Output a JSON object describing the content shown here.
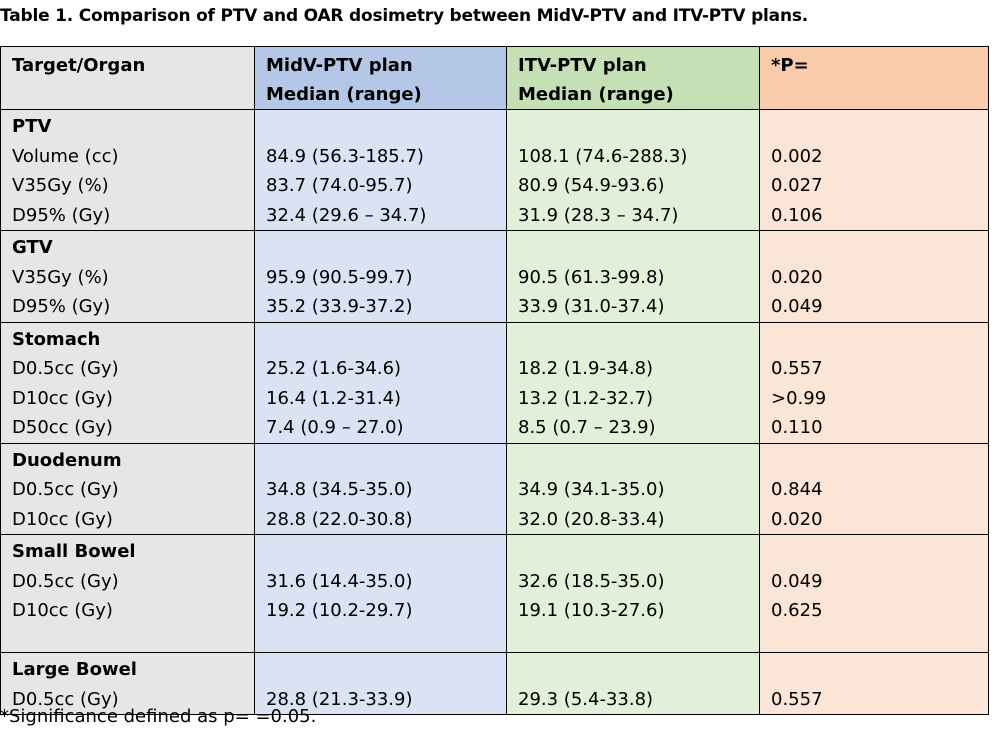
{
  "caption": "Table 1.  Comparison of PTV and OAR dosimetry between MidV-PTV and ITV-PTV plans.",
  "headers": {
    "target": "Target/Organ",
    "midv_1": "MidV-PTV plan",
    "midv_2": "Median (range)",
    "itv_1": "ITV-PTV plan",
    "itv_2": "Median (range)",
    "p": "*P="
  },
  "groups": [
    {
      "name": "PTV",
      "rows": [
        {
          "label": "Volume (cc)",
          "midv": "84.9 (56.3-185.7)",
          "itv": "108.1 (74.6-288.3)",
          "p": "0.002"
        },
        {
          "label": "V35Gy (%)",
          "midv": "83.7 (74.0-95.7)",
          "itv": "80.9 (54.9-93.6)",
          "p": "0.027"
        },
        {
          "label": "D95% (Gy)",
          "midv": "32.4 (29.6 – 34.7)",
          "itv": "31.9 (28.3 – 34.7)",
          "p": "0.106"
        }
      ]
    },
    {
      "name": "GTV",
      "rows": [
        {
          "label": "V35Gy (%)",
          "midv": "95.9 (90.5-99.7)",
          "itv": "90.5 (61.3-99.8)",
          "p": "0.020"
        },
        {
          "label": "D95% (Gy)",
          "midv": "35.2 (33.9-37.2)",
          "itv": "33.9 (31.0-37.4)",
          "p": "0.049"
        }
      ]
    },
    {
      "name": "Stomach",
      "rows": [
        {
          "label": "D0.5cc (Gy)",
          "midv": "25.2 (1.6-34.6)",
          "itv": "18.2 (1.9-34.8)",
          "p": "0.557"
        },
        {
          "label": "D10cc (Gy)",
          "midv": "16.4 (1.2-31.4)",
          "itv": "13.2 (1.2-32.7)",
          "p": ">0.99"
        },
        {
          "label": "D50cc (Gy)",
          "midv": "7.4 (0.9 – 27.0)",
          "itv": "8.5 (0.7 – 23.9)",
          "p": "0.110"
        }
      ]
    },
    {
      "name": "Duodenum",
      "rows": [
        {
          "label": "D0.5cc (Gy)",
          "midv": "34.8 (34.5-35.0)",
          "itv": "34.9 (34.1-35.0)",
          "p": "0.844"
        },
        {
          "label": "D10cc (Gy)",
          "midv": "28.8 (22.0-30.8)",
          "itv": "32.0 (20.8-33.4)",
          "p": "0.020"
        }
      ]
    },
    {
      "name": "Small Bowel",
      "rows": [
        {
          "label": "D0.5cc (Gy)",
          "midv": "31.6 (14.4-35.0)",
          "itv": "32.6 (18.5-35.0)",
          "p": "0.049"
        },
        {
          "label": "D10cc (Gy)",
          "midv": "19.2 (10.2-29.7)",
          "itv": "19.1 (10.3-27.6)",
          "p": "0.625"
        }
      ]
    },
    {
      "name": "Large Bowel",
      "rows": [
        {
          "label": "D0.5cc (Gy)",
          "midv": "28.8 (21.3-33.9)",
          "itv": "29.3 (5.4-33.8)",
          "p": "0.557"
        }
      ]
    }
  ],
  "footnote": "*Significance defined as p= =0.05.",
  "colors": {
    "label_col": "#e7e6e6",
    "midv_col": "#dae3f3",
    "itv_col": "#e2f0d9",
    "p_col": "#fbe5d6"
  }
}
